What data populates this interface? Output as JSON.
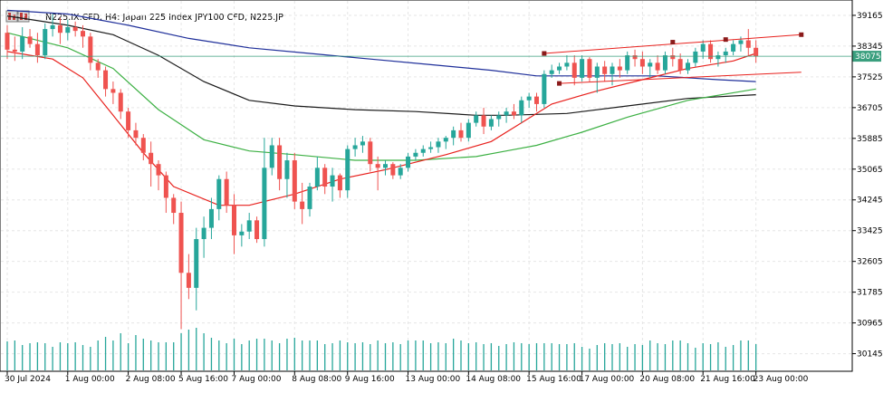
{
  "window": {
    "title": "N225.IX.CFD, H4:  Japan 225 Index JPY100 CFD, N225.JP",
    "icon": "chart-window-icon"
  },
  "colors": {
    "bull": "#26a69a",
    "bear": "#ef5350",
    "grid": "#e6e6e6",
    "border": "#000000",
    "ma_fast": "#e8211d",
    "ma_mid": "#3cb043",
    "ma_slow": "#1a1a1a",
    "ma_long": "#1f2f9a",
    "channel": "#e8211d",
    "anchor": "#8b1a1a",
    "current_line": "#3a9f7e",
    "current_label_bg": "#3a9f7e",
    "volume": "#26a69a"
  },
  "chart_data": {
    "type": "candlestick",
    "symbol": "N225.IX.CFD",
    "timeframe": "H4",
    "description": "Japan 225 Index JPY100 CFD, N225.JP",
    "ylim": [
      29700,
      39550
    ],
    "y_ticks": [
      39165,
      38345,
      37525,
      36705,
      35885,
      35065,
      34245,
      33425,
      32605,
      31785,
      30965,
      30145
    ],
    "current_price": 38075,
    "x_tick_labels": [
      {
        "index": 0,
        "label": "30 Jul 2024"
      },
      {
        "index": 8,
        "label": "1 Aug 00:00"
      },
      {
        "index": 16,
        "label": "2 Aug 08:00"
      },
      {
        "index": 23,
        "label": "5 Aug 16:00"
      },
      {
        "index": 30,
        "label": "7 Aug 00:00"
      },
      {
        "index": 38,
        "label": "8 Aug 08:00"
      },
      {
        "index": 45,
        "label": "9 Aug 16:00"
      },
      {
        "index": 53,
        "label": "13 Aug 00:00"
      },
      {
        "index": 61,
        "label": "14 Aug 08:00"
      },
      {
        "index": 69,
        "label": "15 Aug 16:00"
      },
      {
        "index": 76,
        "label": "17 Aug 00:00"
      },
      {
        "index": 84,
        "label": "20 Aug 08:00"
      },
      {
        "index": 92,
        "label": "21 Aug 16:00"
      },
      {
        "index": 99,
        "label": "23 Aug 00:00"
      }
    ],
    "candles": [
      {
        "o": 38700,
        "h": 38900,
        "l": 38000,
        "c": 38250
      },
      {
        "o": 38250,
        "h": 38600,
        "l": 37950,
        "c": 38200
      },
      {
        "o": 38200,
        "h": 38850,
        "l": 38000,
        "c": 38600
      },
      {
        "o": 38600,
        "h": 38800,
        "l": 38300,
        "c": 38400
      },
      {
        "o": 38400,
        "h": 38700,
        "l": 37900,
        "c": 38100
      },
      {
        "o": 38100,
        "h": 38950,
        "l": 38000,
        "c": 38800
      },
      {
        "o": 38800,
        "h": 39200,
        "l": 38600,
        "c": 38900
      },
      {
        "o": 38900,
        "h": 39100,
        "l": 38400,
        "c": 38700
      },
      {
        "o": 38700,
        "h": 39050,
        "l": 38500,
        "c": 38850
      },
      {
        "o": 38850,
        "h": 39000,
        "l": 38600,
        "c": 38750
      },
      {
        "o": 38750,
        "h": 38900,
        "l": 38300,
        "c": 38600
      },
      {
        "o": 38600,
        "h": 38700,
        "l": 37700,
        "c": 37900
      },
      {
        "o": 37900,
        "h": 38000,
        "l": 37500,
        "c": 37700
      },
      {
        "o": 37700,
        "h": 37800,
        "l": 37000,
        "c": 37200
      },
      {
        "o": 37200,
        "h": 37400,
        "l": 36800,
        "c": 37100
      },
      {
        "o": 37100,
        "h": 37200,
        "l": 36400,
        "c": 36600
      },
      {
        "o": 36600,
        "h": 36700,
        "l": 35900,
        "c": 36100
      },
      {
        "o": 36100,
        "h": 36300,
        "l": 35700,
        "c": 35900
      },
      {
        "o": 35900,
        "h": 36000,
        "l": 35300,
        "c": 35500
      },
      {
        "o": 35500,
        "h": 35800,
        "l": 34600,
        "c": 35200
      },
      {
        "o": 35200,
        "h": 35300,
        "l": 34500,
        "c": 34900
      },
      {
        "o": 34900,
        "h": 35000,
        "l": 33900,
        "c": 34300
      },
      {
        "o": 34300,
        "h": 34400,
        "l": 33600,
        "c": 33900
      },
      {
        "o": 33900,
        "h": 34200,
        "l": 30800,
        "c": 32300
      },
      {
        "o": 32300,
        "h": 32800,
        "l": 31600,
        "c": 31900
      },
      {
        "o": 31900,
        "h": 33500,
        "l": 31300,
        "c": 33200
      },
      {
        "o": 33200,
        "h": 33800,
        "l": 32700,
        "c": 33500
      },
      {
        "o": 33500,
        "h": 34300,
        "l": 33200,
        "c": 34000
      },
      {
        "o": 34000,
        "h": 34900,
        "l": 33700,
        "c": 34800
      },
      {
        "o": 34800,
        "h": 35000,
        "l": 33900,
        "c": 34100
      },
      {
        "o": 34100,
        "h": 34400,
        "l": 32800,
        "c": 33300
      },
      {
        "o": 33300,
        "h": 33600,
        "l": 33000,
        "c": 33400
      },
      {
        "o": 33400,
        "h": 33900,
        "l": 33200,
        "c": 33700
      },
      {
        "o": 33700,
        "h": 33800,
        "l": 33100,
        "c": 33200
      },
      {
        "o": 33200,
        "h": 35900,
        "l": 33000,
        "c": 35100
      },
      {
        "o": 35100,
        "h": 35900,
        "l": 34900,
        "c": 35700
      },
      {
        "o": 35700,
        "h": 35900,
        "l": 34500,
        "c": 34800
      },
      {
        "o": 34800,
        "h": 35500,
        "l": 34300,
        "c": 35300
      },
      {
        "o": 35300,
        "h": 35500,
        "l": 34000,
        "c": 34200
      },
      {
        "o": 34200,
        "h": 34700,
        "l": 33600,
        "c": 34000
      },
      {
        "o": 34000,
        "h": 34700,
        "l": 33800,
        "c": 34600
      },
      {
        "o": 34600,
        "h": 35400,
        "l": 34500,
        "c": 35100
      },
      {
        "o": 35100,
        "h": 35200,
        "l": 34400,
        "c": 34600
      },
      {
        "o": 34600,
        "h": 35100,
        "l": 34200,
        "c": 34900
      },
      {
        "o": 34900,
        "h": 34950,
        "l": 34300,
        "c": 34500
      },
      {
        "o": 34500,
        "h": 35700,
        "l": 34300,
        "c": 35600
      },
      {
        "o": 35600,
        "h": 35900,
        "l": 35400,
        "c": 35700
      },
      {
        "o": 35700,
        "h": 35950,
        "l": 35500,
        "c": 35800
      },
      {
        "o": 35800,
        "h": 35900,
        "l": 35000,
        "c": 35200
      },
      {
        "o": 35200,
        "h": 35400,
        "l": 34500,
        "c": 35100
      },
      {
        "o": 35100,
        "h": 35300,
        "l": 34900,
        "c": 35200
      },
      {
        "o": 35200,
        "h": 35250,
        "l": 34800,
        "c": 34900
      },
      {
        "o": 34900,
        "h": 35200,
        "l": 34800,
        "c": 35100
      },
      {
        "o": 35100,
        "h": 35500,
        "l": 35000,
        "c": 35400
      },
      {
        "o": 35400,
        "h": 35600,
        "l": 35300,
        "c": 35500
      },
      {
        "o": 35500,
        "h": 35700,
        "l": 35400,
        "c": 35600
      },
      {
        "o": 35600,
        "h": 35800,
        "l": 35500,
        "c": 35650
      },
      {
        "o": 35650,
        "h": 35900,
        "l": 35500,
        "c": 35800
      },
      {
        "o": 35800,
        "h": 35950,
        "l": 35600,
        "c": 35900
      },
      {
        "o": 35900,
        "h": 36200,
        "l": 35700,
        "c": 36100
      },
      {
        "o": 36100,
        "h": 36300,
        "l": 35800,
        "c": 35900
      },
      {
        "o": 35900,
        "h": 36400,
        "l": 35800,
        "c": 36300
      },
      {
        "o": 36300,
        "h": 36600,
        "l": 36200,
        "c": 36500
      },
      {
        "o": 36500,
        "h": 36700,
        "l": 36000,
        "c": 36200
      },
      {
        "o": 36200,
        "h": 36500,
        "l": 36100,
        "c": 36400
      },
      {
        "o": 36400,
        "h": 36600,
        "l": 36200,
        "c": 36500
      },
      {
        "o": 36500,
        "h": 36700,
        "l": 36300,
        "c": 36600
      },
      {
        "o": 36600,
        "h": 36800,
        "l": 36400,
        "c": 36500
      },
      {
        "o": 36500,
        "h": 37000,
        "l": 36300,
        "c": 36900
      },
      {
        "o": 36900,
        "h": 37100,
        "l": 36700,
        "c": 37000
      },
      {
        "o": 37000,
        "h": 37100,
        "l": 36600,
        "c": 36800
      },
      {
        "o": 36800,
        "h": 37700,
        "l": 36700,
        "c": 37600
      },
      {
        "o": 37600,
        "h": 37850,
        "l": 37500,
        "c": 37700
      },
      {
        "o": 37700,
        "h": 37900,
        "l": 37600,
        "c": 37800
      },
      {
        "o": 37800,
        "h": 38100,
        "l": 37700,
        "c": 37900
      },
      {
        "o": 37900,
        "h": 38100,
        "l": 37300,
        "c": 37500
      },
      {
        "o": 37500,
        "h": 38100,
        "l": 37400,
        "c": 38000
      },
      {
        "o": 38000,
        "h": 38050,
        "l": 37400,
        "c": 37500
      },
      {
        "o": 37500,
        "h": 37900,
        "l": 37100,
        "c": 37800
      },
      {
        "o": 37800,
        "h": 37950,
        "l": 37400,
        "c": 37600
      },
      {
        "o": 37600,
        "h": 37900,
        "l": 37300,
        "c": 37800
      },
      {
        "o": 37800,
        "h": 38000,
        "l": 37500,
        "c": 37700
      },
      {
        "o": 37700,
        "h": 38200,
        "l": 37600,
        "c": 38100
      },
      {
        "o": 38100,
        "h": 38250,
        "l": 37800,
        "c": 38000
      },
      {
        "o": 38000,
        "h": 38200,
        "l": 37600,
        "c": 37800
      },
      {
        "o": 37800,
        "h": 38000,
        "l": 37500,
        "c": 37900
      },
      {
        "o": 37900,
        "h": 38100,
        "l": 37600,
        "c": 37700
      },
      {
        "o": 37700,
        "h": 38200,
        "l": 37600,
        "c": 38100
      },
      {
        "o": 38100,
        "h": 38300,
        "l": 37800,
        "c": 38000
      },
      {
        "o": 38000,
        "h": 38150,
        "l": 37600,
        "c": 37700
      },
      {
        "o": 37700,
        "h": 38000,
        "l": 37600,
        "c": 37900
      },
      {
        "o": 37900,
        "h": 38300,
        "l": 37800,
        "c": 38200
      },
      {
        "o": 38200,
        "h": 38500,
        "l": 38000,
        "c": 38400
      },
      {
        "o": 38400,
        "h": 38500,
        "l": 37900,
        "c": 38000
      },
      {
        "o": 38000,
        "h": 38200,
        "l": 37800,
        "c": 38100
      },
      {
        "o": 38100,
        "h": 38300,
        "l": 37900,
        "c": 38200
      },
      {
        "o": 38200,
        "h": 38500,
        "l": 38100,
        "c": 38400
      },
      {
        "o": 38400,
        "h": 38600,
        "l": 38200,
        "c": 38500
      },
      {
        "o": 38500,
        "h": 38800,
        "l": 38100,
        "c": 38300
      },
      {
        "o": 38300,
        "h": 38500,
        "l": 37900,
        "c": 38075
      }
    ],
    "volume": [
      32,
      33,
      28,
      30,
      31,
      30,
      26,
      31,
      30,
      31,
      28,
      26,
      33,
      37,
      33,
      41,
      30,
      39,
      35,
      33,
      31,
      31,
      31,
      41,
      45,
      47,
      41,
      36,
      33,
      30,
      35,
      29,
      33,
      35,
      35,
      33,
      30,
      35,
      36,
      33,
      33,
      33,
      29,
      30,
      33,
      31,
      30,
      31,
      29,
      33,
      30,
      31,
      29,
      33,
      33,
      33,
      30,
      31,
      30,
      35,
      33,
      30,
      31,
      29,
      30,
      27,
      29,
      31,
      30,
      29,
      30,
      30,
      30,
      29,
      29,
      30,
      26,
      24,
      28,
      30,
      29,
      30,
      26,
      29,
      28,
      33,
      30,
      29,
      33,
      33,
      30,
      25,
      30,
      29,
      31,
      26,
      28,
      33,
      33,
      29
    ],
    "volume_max": 60,
    "moving_averages": [
      {
        "color_key": "ma_long",
        "points": [
          [
            0,
            39300
          ],
          [
            8,
            39200
          ],
          [
            16,
            38900
          ],
          [
            24,
            38550
          ],
          [
            32,
            38300
          ],
          [
            40,
            38150
          ],
          [
            48,
            38000
          ],
          [
            56,
            37850
          ],
          [
            64,
            37700
          ],
          [
            70,
            37550
          ],
          [
            78,
            37550
          ],
          [
            86,
            37550
          ],
          [
            94,
            37450
          ],
          [
            99,
            37400
          ]
        ]
      },
      {
        "color_key": "ma_slow",
        "points": [
          [
            0,
            39150
          ],
          [
            8,
            38900
          ],
          [
            14,
            38650
          ],
          [
            20,
            38100
          ],
          [
            26,
            37400
          ],
          [
            32,
            36900
          ],
          [
            38,
            36750
          ],
          [
            46,
            36650
          ],
          [
            54,
            36600
          ],
          [
            62,
            36500
          ],
          [
            66,
            36500
          ],
          [
            74,
            36550
          ],
          [
            82,
            36750
          ],
          [
            90,
            36950
          ],
          [
            99,
            37050
          ]
        ]
      },
      {
        "color_key": "ma_mid",
        "points": [
          [
            0,
            38700
          ],
          [
            8,
            38300
          ],
          [
            14,
            37750
          ],
          [
            20,
            36650
          ],
          [
            26,
            35850
          ],
          [
            32,
            35550
          ],
          [
            38,
            35450
          ],
          [
            46,
            35300
          ],
          [
            54,
            35300
          ],
          [
            62,
            35400
          ],
          [
            66,
            35550
          ],
          [
            70,
            35700
          ],
          [
            76,
            36050
          ],
          [
            82,
            36450
          ],
          [
            90,
            36900
          ],
          [
            99,
            37200
          ]
        ]
      },
      {
        "color_key": "ma_fast",
        "points": [
          [
            0,
            38200
          ],
          [
            6,
            38000
          ],
          [
            10,
            37500
          ],
          [
            14,
            36500
          ],
          [
            18,
            35500
          ],
          [
            22,
            34600
          ],
          [
            28,
            34100
          ],
          [
            32,
            34100
          ],
          [
            38,
            34400
          ],
          [
            44,
            34800
          ],
          [
            50,
            35050
          ],
          [
            58,
            35450
          ],
          [
            64,
            35800
          ],
          [
            68,
            36300
          ],
          [
            72,
            36800
          ],
          [
            78,
            37150
          ],
          [
            84,
            37450
          ],
          [
            90,
            37750
          ],
          [
            96,
            37950
          ],
          [
            99,
            38150
          ]
        ]
      }
    ],
    "channel_lines": [
      {
        "from": [
          71,
          38150
        ],
        "to": [
          105,
          38650
        ]
      },
      {
        "from": [
          73,
          37350
        ],
        "to": [
          105,
          37650
        ]
      }
    ],
    "anchor_points": [
      [
        71,
        38150
      ],
      [
        73,
        37350
      ],
      [
        88,
        38450
      ],
      [
        95,
        38520
      ],
      [
        105,
        38650
      ]
    ]
  }
}
